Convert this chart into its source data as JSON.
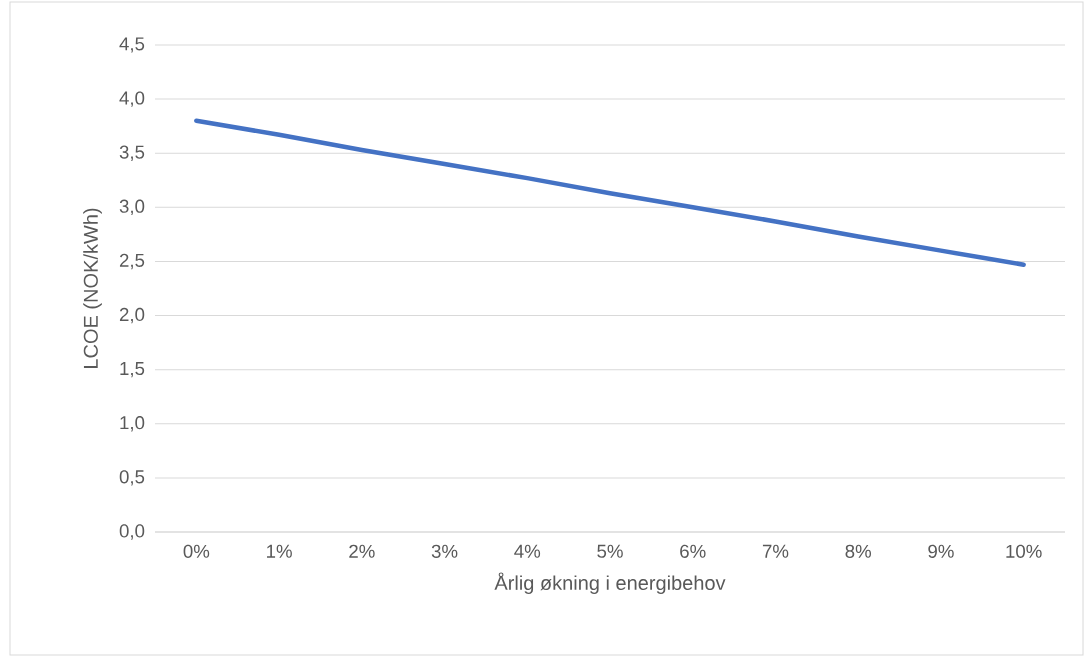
{
  "chart_data": {
    "type": "line",
    "xlabel": "Årlig økning i energibehov",
    "ylabel": "LCOE (NOK/kWh)",
    "categories": [
      "0%",
      "1%",
      "2%",
      "3%",
      "4%",
      "5%",
      "6%",
      "7%",
      "8%",
      "9%",
      "10%"
    ],
    "series": [
      {
        "color": "#4472c4",
        "values": [
          3.8,
          3.67,
          3.53,
          3.4,
          3.27,
          3.13,
          3.0,
          2.87,
          2.73,
          2.6,
          2.47
        ]
      }
    ],
    "ylim": [
      0,
      4.5
    ],
    "yticks": [
      {
        "value": 0,
        "label": "0,0"
      },
      {
        "value": 0.5,
        "label": "0,5"
      },
      {
        "value": 1,
        "label": "1,0"
      },
      {
        "value": 1.5,
        "label": "1,5"
      },
      {
        "value": 2,
        "label": "2,0"
      },
      {
        "value": 2.5,
        "label": "2,5"
      },
      {
        "value": 3,
        "label": "3,0"
      },
      {
        "value": 3.5,
        "label": "3,5"
      },
      {
        "value": 4,
        "label": "4,0"
      },
      {
        "value": 4.5,
        "label": "4,5"
      }
    ],
    "grid": "y",
    "marker": "none",
    "line_style": "solid"
  }
}
